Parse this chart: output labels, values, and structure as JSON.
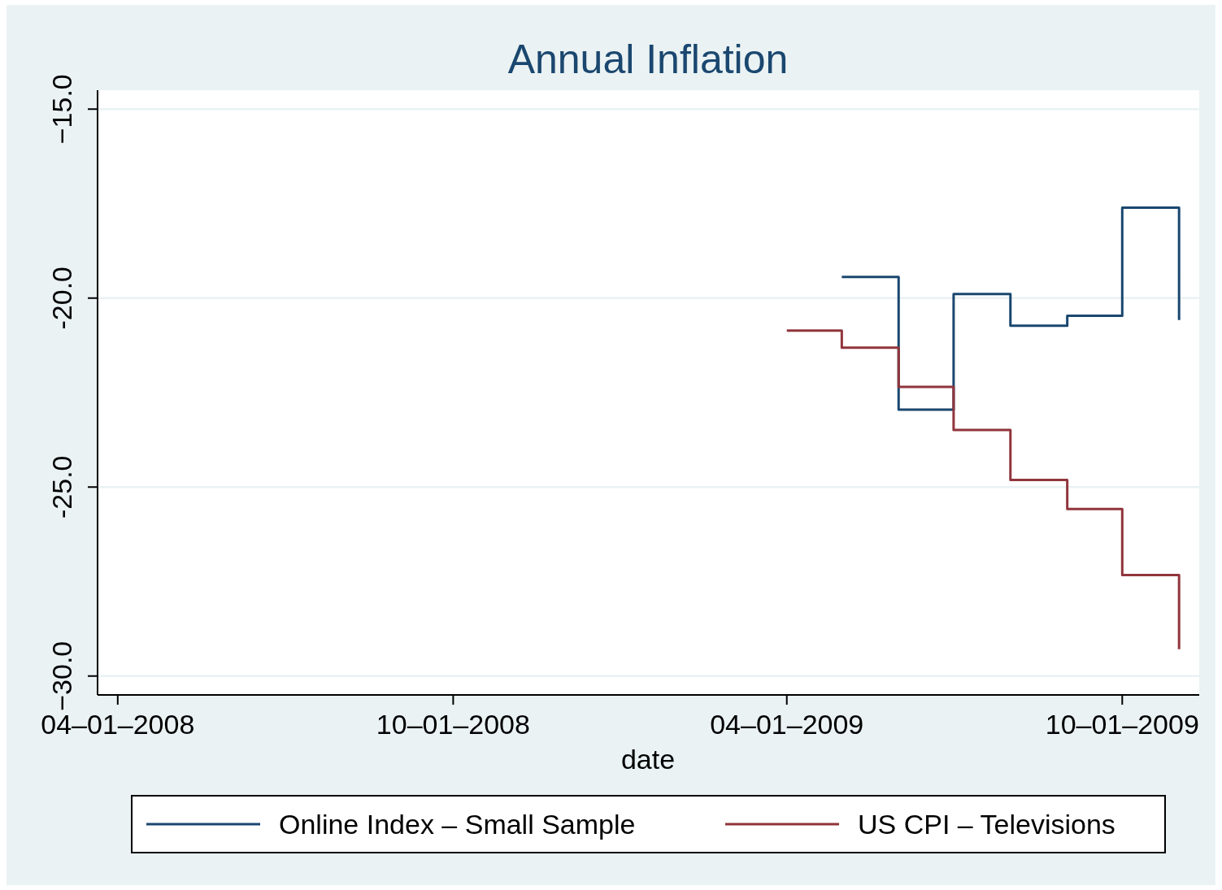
{
  "chart_data": {
    "type": "step",
    "title": "Annual Inflation",
    "xlabel": "date",
    "x": [
      "2009-04-01",
      "2009-05-01",
      "2009-06-01",
      "2009-07-01",
      "2009-08-01",
      "2009-09-01",
      "2009-10-01",
      "2009-11-01"
    ],
    "series": [
      {
        "name": "Online Index – Small Sample",
        "color": "#1a476f",
        "values": [
          null,
          -19.44,
          -22.95,
          -19.89,
          -20.73,
          -20.47,
          -17.61,
          -20.58
        ]
      },
      {
        "name": "US CPI – Televisions",
        "color": "#90353b",
        "values": [
          -20.86,
          -21.31,
          -22.35,
          -23.49,
          -24.81,
          -25.58,
          -27.33,
          -29.29
        ]
      }
    ],
    "xlim": [
      "2008-03-21",
      "2009-11-12"
    ],
    "xticks": [
      {
        "value": "2008-04-01",
        "label": "04–01–2008"
      },
      {
        "value": "2008-10-01",
        "label": "10–01–2008"
      },
      {
        "value": "2009-04-01",
        "label": "04–01–2009"
      },
      {
        "value": "2009-10-01",
        "label": "10–01–2009"
      }
    ],
    "ylim": [
      -30.5,
      -14.5
    ],
    "yticks": [
      {
        "value": -15,
        "label": "−15.0"
      },
      {
        "value": -20,
        "label": "-20.0"
      },
      {
        "value": -25,
        "label": "-25.0"
      },
      {
        "value": -30,
        "label": "−30.0"
      }
    ],
    "grid": "y",
    "legend": "bottom"
  }
}
